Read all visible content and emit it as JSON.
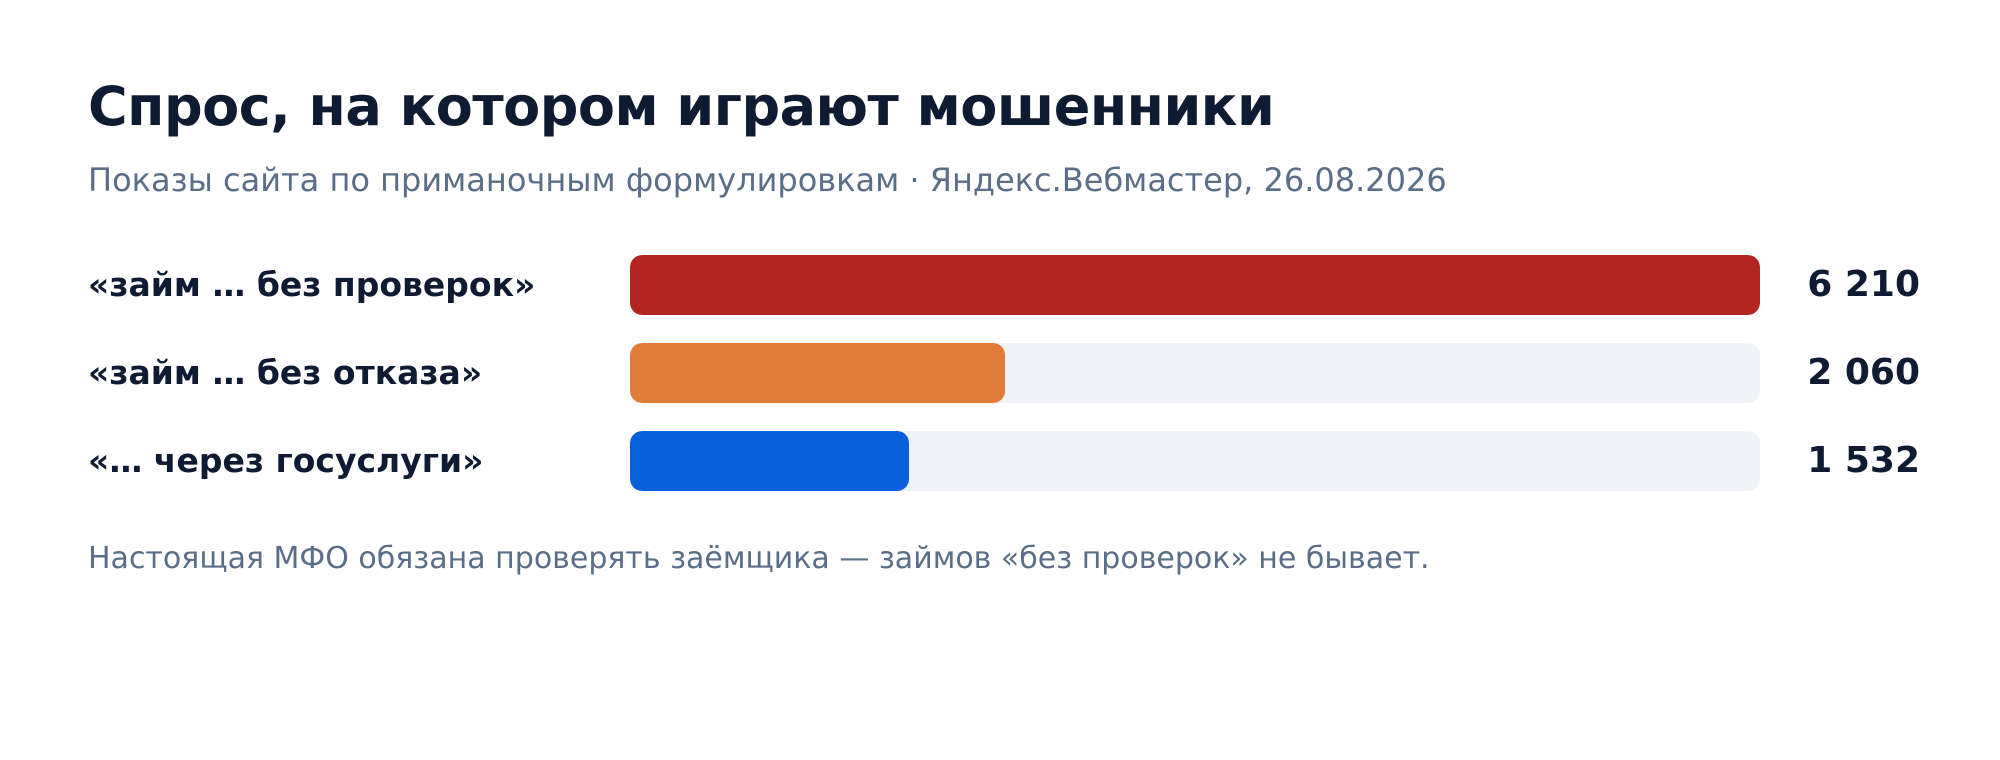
{
  "title": "Спрос, на котором играют мошенники",
  "subtitle": "Показы сайта по приманочным формулировкам · Яндекс.Вебмастер, 26.08.2026",
  "footnote": "Настоящая МФО обязана проверять заёмщика — займов «без проверок» не бывает.",
  "chart_data": {
    "type": "bar",
    "orientation": "horizontal",
    "categories": [
      "«займ … без проверок»",
      "«займ … без отказа»",
      "«… через госуслуги»"
    ],
    "values": [
      6210,
      2060,
      1532
    ],
    "value_labels": [
      "6 210",
      "2 060",
      "1 532"
    ],
    "colors": [
      "#b22520",
      "#e07b39",
      "#0a5fdc"
    ],
    "track_color": "#eff3f8",
    "xlim": [
      0,
      6210
    ],
    "title": "Спрос, на котором играют мошенники",
    "grid": false,
    "legend": "none"
  }
}
